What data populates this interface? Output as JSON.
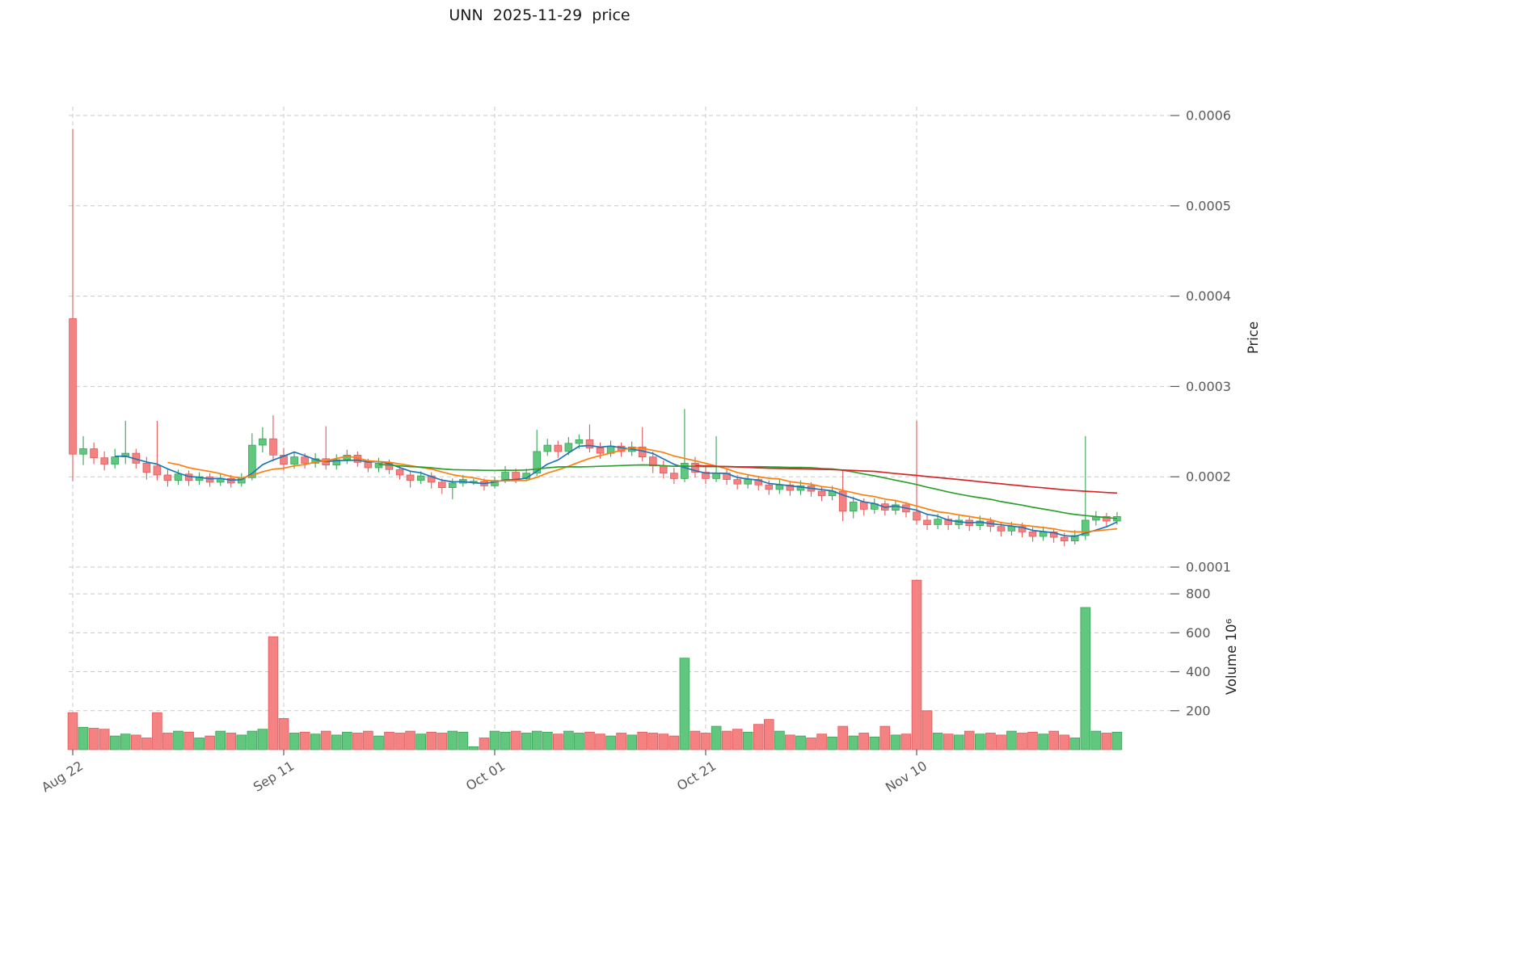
{
  "chart_data": {
    "type": "candlestick",
    "title": "UNN  2025-11-29  price",
    "panels": [
      "price",
      "volume"
    ],
    "grid": "dashed",
    "y_axis": {
      "label": "Price",
      "side": "right",
      "ticks": [
        0.0001,
        0.0002,
        0.0003,
        0.0004,
        0.0005,
        0.0006
      ],
      "tick_labels": [
        "0.0001",
        "0.0002",
        "0.0003",
        "0.0004",
        "0.0005",
        "0.0006"
      ],
      "ylim": [
        9e-05,
        0.00061
      ]
    },
    "volume_axis": {
      "label": "Volume  10⁶",
      "side": "right",
      "ticks": [
        200,
        400,
        600,
        800
      ],
      "ymax": 900,
      "unit": "millions"
    },
    "x_axis": {
      "tick_labels": [
        "Aug 22",
        "Sep 11",
        "Oct 01",
        "Oct 21",
        "Nov 10"
      ],
      "tick_indices": [
        0,
        20,
        40,
        60,
        80
      ]
    },
    "moving_averages": [
      {
        "name": "SMA5",
        "window": 5,
        "color": "#1f77b4"
      },
      {
        "name": "SMA10",
        "window": 10,
        "color": "#ff7f0e"
      },
      {
        "name": "SMA30",
        "window": 30,
        "color": "#2ca02c"
      },
      {
        "name": "SMA60",
        "window": 60,
        "color": "#d62728"
      }
    ],
    "colors": {
      "up": "#61c77e",
      "down": "#f48282",
      "up_edge": "#37a556",
      "down_edge": "#e25b5b",
      "grid": "#c9c9c9",
      "tick_text": "#595959",
      "title_text": "#1a1a1a"
    },
    "dates": [
      "2025-08-22",
      "2025-08-23",
      "2025-08-24",
      "2025-08-25",
      "2025-08-26",
      "2025-08-27",
      "2025-08-28",
      "2025-08-29",
      "2025-08-30",
      "2025-08-31",
      "2025-09-01",
      "2025-09-02",
      "2025-09-03",
      "2025-09-04",
      "2025-09-05",
      "2025-09-06",
      "2025-09-07",
      "2025-09-08",
      "2025-09-09",
      "2025-09-10",
      "2025-09-11",
      "2025-09-12",
      "2025-09-13",
      "2025-09-14",
      "2025-09-15",
      "2025-09-16",
      "2025-09-17",
      "2025-09-18",
      "2025-09-19",
      "2025-09-20",
      "2025-09-21",
      "2025-09-22",
      "2025-09-23",
      "2025-09-24",
      "2025-09-25",
      "2025-09-26",
      "2025-09-27",
      "2025-09-28",
      "2025-09-29",
      "2025-09-30",
      "2025-10-01",
      "2025-10-02",
      "2025-10-03",
      "2025-10-04",
      "2025-10-05",
      "2025-10-06",
      "2025-10-07",
      "2025-10-08",
      "2025-10-09",
      "2025-10-10",
      "2025-10-11",
      "2025-10-12",
      "2025-10-13",
      "2025-10-14",
      "2025-10-15",
      "2025-10-16",
      "2025-10-17",
      "2025-10-18",
      "2025-10-19",
      "2025-10-20",
      "2025-10-21",
      "2025-10-22",
      "2025-10-23",
      "2025-10-24",
      "2025-10-25",
      "2025-10-26",
      "2025-10-27",
      "2025-10-28",
      "2025-10-29",
      "2025-10-30",
      "2025-10-31",
      "2025-11-01",
      "2025-11-02",
      "2025-11-03",
      "2025-11-04",
      "2025-11-05",
      "2025-11-06",
      "2025-11-07",
      "2025-11-08",
      "2025-11-09",
      "2025-11-10",
      "2025-11-11",
      "2025-11-12",
      "2025-11-13",
      "2025-11-14",
      "2025-11-15",
      "2025-11-16",
      "2025-11-17",
      "2025-11-18",
      "2025-11-19",
      "2025-11-20",
      "2025-11-21",
      "2025-11-22",
      "2025-11-23",
      "2025-11-24",
      "2025-11-25",
      "2025-11-26",
      "2025-11-27",
      "2025-11-28",
      "2025-11-29"
    ],
    "open": [
      0.000375,
      0.000225,
      0.000231,
      0.000221,
      0.000214,
      0.000222,
      0.000226,
      0.000215,
      0.000212,
      0.000202,
      0.000196,
      0.000203,
      0.000196,
      0.0002,
      0.000194,
      0.000198,
      0.000193,
      0.000199,
      0.000235,
      0.000242,
      0.000224,
      0.000214,
      0.000222,
      0.000215,
      0.00022,
      0.000213,
      0.000219,
      0.000224,
      0.000216,
      0.00021,
      0.000215,
      0.000208,
      0.000202,
      0.000196,
      0.000201,
      0.000194,
      0.000188,
      0.000193,
      0.000195,
      0.000195,
      0.00019,
      0.000196,
      0.000205,
      0.000198,
      0.000204,
      0.000228,
      0.000235,
      0.000228,
      0.000237,
      0.000241,
      0.000232,
      0.000226,
      0.000234,
      0.000228,
      0.000233,
      0.000222,
      0.000212,
      0.000204,
      0.000198,
      0.000215,
      0.000205,
      0.000198,
      0.000204,
      0.000197,
      0.000192,
      0.000197,
      0.000191,
      0.000186,
      0.000191,
      0.000185,
      0.00019,
      0.000184,
      0.000179,
      0.000184,
      0.000162,
      0.000172,
      0.000164,
      0.00017,
      0.000163,
      0.000169,
      0.000161,
      0.000152,
      0.000147,
      0.000153,
      0.000147,
      0.000152,
      0.000146,
      0.000151,
      0.000145,
      0.00014,
      0.000145,
      0.000139,
      0.000134,
      0.000139,
      0.000133,
      0.000129,
      0.000135,
      0.000152,
      0.000156,
      0.000151
    ],
    "high": [
      0.000585,
      0.000245,
      0.000238,
      0.000228,
      0.000231,
      0.000262,
      0.000231,
      0.000222,
      0.000262,
      0.000208,
      0.000208,
      0.000207,
      0.000205,
      0.000204,
      0.000203,
      0.000202,
      0.000204,
      0.000248,
      0.000255,
      0.000268,
      0.000232,
      0.000228,
      0.000226,
      0.000226,
      0.000256,
      0.000225,
      0.00023,
      0.000228,
      0.00022,
      0.000221,
      0.000219,
      0.000212,
      0.000206,
      0.000206,
      0.000205,
      0.000198,
      0.000198,
      0.000202,
      0.000198,
      0.000198,
      0.0002,
      0.000212,
      0.000209,
      0.000209,
      0.000252,
      0.000242,
      0.00024,
      0.000244,
      0.000247,
      0.000258,
      0.000238,
      0.00024,
      0.000238,
      0.000239,
      0.000255,
      0.000228,
      0.000218,
      0.00021,
      0.000275,
      0.000222,
      0.000212,
      0.000245,
      0.000209,
      0.000202,
      0.000203,
      0.000201,
      0.000196,
      0.000197,
      0.000195,
      0.000196,
      0.000194,
      0.000189,
      0.00019,
      0.000207,
      0.000178,
      0.000176,
      0.000176,
      0.000174,
      0.000174,
      0.000172,
      0.000262,
      0.000158,
      0.000159,
      0.000157,
      0.000158,
      0.000156,
      0.000157,
      0.000155,
      0.00015,
      0.00015,
      0.000149,
      0.000144,
      0.000145,
      0.000143,
      0.000138,
      0.000141,
      0.000245,
      0.000162,
      0.00016,
      0.000161
    ],
    "low": [
      0.000195,
      0.000213,
      0.000214,
      0.000207,
      0.000209,
      0.000214,
      0.000209,
      0.000197,
      0.000196,
      0.000189,
      0.000191,
      0.00019,
      0.000191,
      0.000189,
      0.00019,
      0.000188,
      0.000189,
      0.000196,
      0.000227,
      0.000217,
      0.000207,
      0.000209,
      0.000209,
      0.00021,
      0.000208,
      0.000208,
      0.000214,
      0.000211,
      0.000205,
      0.000205,
      0.000203,
      0.000197,
      0.000188,
      0.000192,
      0.000187,
      0.000181,
      0.000175,
      0.000189,
      0.000191,
      0.000185,
      0.000187,
      0.000193,
      0.000193,
      0.000195,
      0.000201,
      0.000223,
      0.000221,
      0.000224,
      0.000231,
      0.000227,
      0.00022,
      0.000222,
      0.000222,
      0.000223,
      0.000217,
      0.000204,
      0.000198,
      0.000192,
      0.000194,
      0.000199,
      0.000192,
      0.000194,
      0.000191,
      0.000186,
      0.000187,
      0.000185,
      0.00018,
      0.000181,
      0.000179,
      0.00018,
      0.000178,
      0.000173,
      0.000174,
      0.000151,
      0.000154,
      0.000157,
      0.000159,
      0.000157,
      0.000158,
      0.000155,
      0.000147,
      0.000141,
      0.000142,
      0.000141,
      0.000142,
      0.00014,
      0.000141,
      0.000139,
      0.000134,
      0.000135,
      0.000133,
      0.000128,
      0.000129,
      0.000127,
      0.000123,
      0.000125,
      0.00013,
      0.000146,
      0.000144,
      0.000147
    ],
    "close": [
      0.000225,
      0.000231,
      0.000221,
      0.000214,
      0.000222,
      0.000226,
      0.000215,
      0.000205,
      0.000202,
      0.000196,
      0.000203,
      0.000196,
      0.0002,
      0.000194,
      0.000198,
      0.000193,
      0.000199,
      0.000235,
      0.000242,
      0.000224,
      0.000214,
      0.000222,
      0.000215,
      0.00022,
      0.000213,
      0.000219,
      0.000224,
      0.000216,
      0.00021,
      0.000215,
      0.000208,
      0.000202,
      0.000196,
      0.000201,
      0.000194,
      0.000188,
      0.000193,
      0.000197,
      0.000195,
      0.00019,
      0.000196,
      0.000205,
      0.000198,
      0.000204,
      0.000228,
      0.000235,
      0.000228,
      0.000237,
      0.000241,
      0.000232,
      0.000226,
      0.000234,
      0.000228,
      0.000233,
      0.000222,
      0.000212,
      0.000204,
      0.000198,
      0.000215,
      0.000205,
      0.000198,
      0.000204,
      0.000197,
      0.000192,
      0.000197,
      0.000191,
      0.000186,
      0.000191,
      0.000185,
      0.00019,
      0.000184,
      0.000179,
      0.000184,
      0.000162,
      0.000172,
      0.000164,
      0.00017,
      0.000163,
      0.000169,
      0.000161,
      0.000152,
      0.000147,
      0.000153,
      0.000147,
      0.000152,
      0.000146,
      0.000151,
      0.000145,
      0.00014,
      0.000145,
      0.000139,
      0.000134,
      0.000139,
      0.000133,
      0.000129,
      0.000135,
      0.000152,
      0.000156,
      0.000151,
      0.000156
    ],
    "volume_millions": [
      190,
      115,
      110,
      105,
      70,
      80,
      75,
      60,
      190,
      85,
      95,
      90,
      60,
      70,
      95,
      85,
      75,
      95,
      105,
      580,
      160,
      85,
      90,
      80,
      95,
      75,
      90,
      85,
      95,
      70,
      90,
      85,
      95,
      80,
      90,
      85,
      95,
      90,
      15,
      60,
      95,
      90,
      95,
      85,
      95,
      90,
      80,
      95,
      85,
      90,
      80,
      70,
      85,
      75,
      90,
      85,
      80,
      70,
      470,
      95,
      85,
      120,
      95,
      105,
      90,
      130,
      155,
      95,
      75,
      70,
      60,
      80,
      65,
      120,
      70,
      85,
      65,
      120,
      75,
      80,
      870,
      200,
      85,
      80,
      75,
      95,
      80,
      85,
      75,
      95,
      85,
      90,
      80,
      95,
      75,
      60,
      730,
      95,
      85,
      90
    ]
  }
}
